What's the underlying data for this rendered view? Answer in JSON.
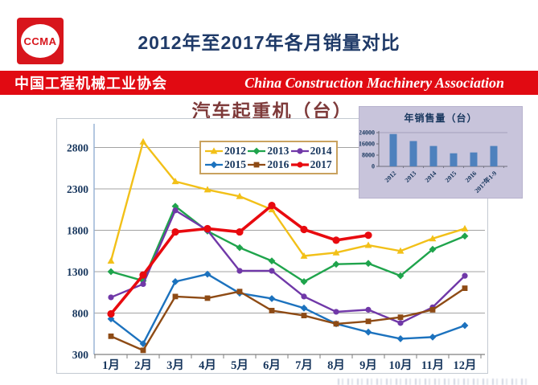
{
  "header": {
    "logo_text": "CCMA",
    "title": "2012年至2017年各月销量对比"
  },
  "banner": {
    "org_cn": "中国工程机械工业协会",
    "org_en": "China Construction Machinery Association"
  },
  "colors": {
    "banner_red": "#e10a12",
    "title_navy": "#1f3a68",
    "axis_navy": "#17365d",
    "chart_title_maroon": "#7e3a3a",
    "legend_border_tan": "#c9a25f",
    "inset_background": "#c8c4db",
    "inset_bar_blue": "#4e81bd"
  },
  "chart_data": [
    {
      "type": "line",
      "title": "汽车起重机（台）",
      "categories": [
        "1月",
        "2月",
        "3月",
        "4月",
        "5月",
        "6月",
        "7月",
        "8月",
        "9月",
        "10月",
        "11月",
        "12月"
      ],
      "yticks": [
        300,
        800,
        1300,
        1800,
        2300,
        2800
      ],
      "ylim": [
        300,
        3000
      ],
      "grid": true,
      "legend_position": "top-center",
      "series": [
        {
          "name": "2012",
          "color": "#f2c018",
          "marker": "triangle",
          "thick": false,
          "values": [
            1430,
            2870,
            2390,
            2290,
            2210,
            2050,
            1490,
            1530,
            1620,
            1550,
            1700,
            1820
          ]
        },
        {
          "name": "2013",
          "color": "#1fa44c",
          "marker": "diamond",
          "thick": false,
          "values": [
            1300,
            1190,
            2090,
            1790,
            1590,
            1430,
            1180,
            1390,
            1400,
            1250,
            1570,
            1730
          ]
        },
        {
          "name": "2014",
          "color": "#7038a8",
          "marker": "circle",
          "thick": false,
          "values": [
            990,
            1150,
            2040,
            1800,
            1310,
            1310,
            1000,
            815,
            840,
            680,
            870,
            1250
          ]
        },
        {
          "name": "2015",
          "color": "#1c72be",
          "marker": "diamond",
          "thick": false,
          "values": [
            730,
            430,
            1180,
            1270,
            1040,
            975,
            860,
            670,
            570,
            490,
            510,
            650
          ]
        },
        {
          "name": "2016",
          "color": "#8e4b15",
          "marker": "square",
          "thick": false,
          "values": [
            520,
            350,
            1000,
            980,
            1060,
            830,
            770,
            670,
            700,
            750,
            840,
            1100
          ]
        },
        {
          "name": "2017",
          "color": "#e80a0f",
          "marker": "circle",
          "thick": true,
          "values": [
            790,
            1260,
            1780,
            1820,
            1780,
            2100,
            1810,
            1680,
            1740
          ]
        }
      ]
    },
    {
      "type": "bar",
      "title": "年销售量（台）",
      "categories": [
        "2012",
        "2013",
        "2014",
        "2015",
        "2016",
        "2017年1-9"
      ],
      "values": [
        23000,
        18000,
        14500,
        9300,
        9900,
        14500
      ],
      "yticks": [
        0,
        8000,
        16000,
        24000
      ],
      "ylim": [
        0,
        24000
      ],
      "bar_color": "#4e81bd"
    }
  ]
}
